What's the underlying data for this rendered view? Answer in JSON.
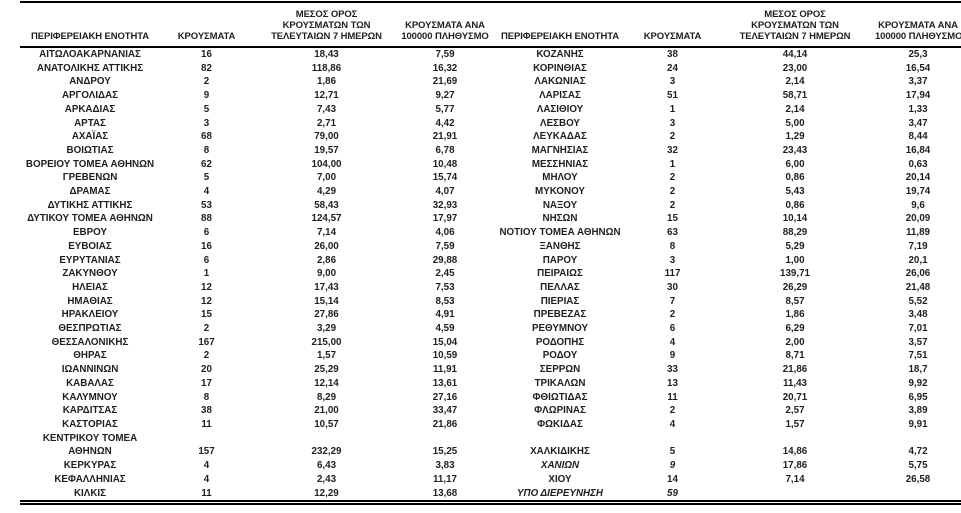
{
  "colors": {
    "text": "#1f1f1f",
    "rule": "#000000",
    "background": "#ffffff"
  },
  "table": {
    "column_headers": {
      "region": "ΠΕΡΙΦΕΡΕΙΑΚΗ ΕΝΟΤΗΤΑ",
      "cases": "ΚΡΟΥΣΜΑΤΑ",
      "avg7": "ΜΕΣΟΣ ΟΡΟΣ\nΚΡΟΥΣΜΑΤΩΝ ΤΩΝ\nΤΕΛΕΥΤΑΙΩΝ 7 ΗΜΕΡΩΝ",
      "per100k": "ΚΡΟΥΣΜΑΤΑ ΑΝΑ\n100000 ΠΛΗΘΥΣΜΟ"
    },
    "rows": [
      {
        "left": {
          "region": "ΑΙΤΩΛΟΑΚΑΡΝΑΝΙΑΣ",
          "cases": "16",
          "avg7": "18,43",
          "per100k": "7,59"
        },
        "right": {
          "region": "ΚΟΖΑΝΗΣ",
          "cases": "38",
          "avg7": "44,14",
          "per100k": "25,3"
        }
      },
      {
        "left": {
          "region": "ΑΝΑΤΟΛΙΚΗΣ ΑΤΤΙΚΗΣ",
          "cases": "82",
          "avg7": "118,86",
          "per100k": "16,32"
        },
        "right": {
          "region": "ΚΟΡΙΝΘΙΑΣ",
          "cases": "24",
          "avg7": "23,00",
          "per100k": "16,54"
        }
      },
      {
        "left": {
          "region": "ΑΝΔΡΟΥ",
          "cases": "2",
          "avg7": "1,86",
          "per100k": "21,69"
        },
        "right": {
          "region": "ΛΑΚΩΝΙΑΣ",
          "cases": "3",
          "avg7": "2,14",
          "per100k": "3,37"
        }
      },
      {
        "left": {
          "region": "ΑΡΓΟΛΙΔΑΣ",
          "cases": "9",
          "avg7": "12,71",
          "per100k": "9,27"
        },
        "right": {
          "region": "ΛΑΡΙΣΑΣ",
          "cases": "51",
          "avg7": "58,71",
          "per100k": "17,94"
        }
      },
      {
        "left": {
          "region": "ΑΡΚΑΔΙΑΣ",
          "cases": "5",
          "avg7": "7,43",
          "per100k": "5,77"
        },
        "right": {
          "region": "ΛΑΣΙΘΙΟΥ",
          "cases": "1",
          "avg7": "2,14",
          "per100k": "1,33"
        }
      },
      {
        "left": {
          "region": "ΑΡΤΑΣ",
          "cases": "3",
          "avg7": "2,71",
          "per100k": "4,42"
        },
        "right": {
          "region": "ΛΕΣΒΟΥ",
          "cases": "3",
          "avg7": "5,00",
          "per100k": "3,47"
        }
      },
      {
        "left": {
          "region": "ΑΧΑΪΑΣ",
          "cases": "68",
          "avg7": "79,00",
          "per100k": "21,91"
        },
        "right": {
          "region": "ΛΕΥΚΑΔΑΣ",
          "cases": "2",
          "avg7": "1,29",
          "per100k": "8,44"
        }
      },
      {
        "left": {
          "region": "ΒΟΙΩΤΙΑΣ",
          "cases": "8",
          "avg7": "19,57",
          "per100k": "6,78"
        },
        "right": {
          "region": "ΜΑΓΝΗΣΙΑΣ",
          "cases": "32",
          "avg7": "23,43",
          "per100k": "16,84"
        }
      },
      {
        "left": {
          "region": "ΒΟΡΕΙΟΥ ΤΟΜΕΑ ΑΘΗΝΩΝ",
          "cases": "62",
          "avg7": "104,00",
          "per100k": "10,48"
        },
        "right": {
          "region": "ΜΕΣΣΗΝΙΑΣ",
          "cases": "1",
          "avg7": "6,00",
          "per100k": "0,63"
        }
      },
      {
        "left": {
          "region": "ΓΡΕΒΕΝΩΝ",
          "cases": "5",
          "avg7": "7,00",
          "per100k": "15,74"
        },
        "right": {
          "region": "ΜΗΛΟΥ",
          "cases": "2",
          "avg7": "0,86",
          "per100k": "20,14"
        }
      },
      {
        "left": {
          "region": "ΔΡΑΜΑΣ",
          "cases": "4",
          "avg7": "4,29",
          "per100k": "4,07"
        },
        "right": {
          "region": "ΜΥΚΟΝΟΥ",
          "cases": "2",
          "avg7": "5,43",
          "per100k": "19,74"
        }
      },
      {
        "left": {
          "region": "ΔΥΤΙΚΗΣ ΑΤΤΙΚΗΣ",
          "cases": "53",
          "avg7": "58,43",
          "per100k": "32,93"
        },
        "right": {
          "region": "ΝΑΞΟΥ",
          "cases": "2",
          "avg7": "0,86",
          "per100k": "9,6"
        }
      },
      {
        "left": {
          "region": "ΔΥΤΙΚΟΥ ΤΟΜΕΑ ΑΘΗΝΩΝ",
          "cases": "88",
          "avg7": "124,57",
          "per100k": "17,97"
        },
        "right": {
          "region": "ΝΗΣΩΝ",
          "cases": "15",
          "avg7": "10,14",
          "per100k": "20,09"
        }
      },
      {
        "left": {
          "region": "ΕΒΡΟΥ",
          "cases": "6",
          "avg7": "7,14",
          "per100k": "4,06"
        },
        "right": {
          "region": "ΝΟΤΙΟΥ ΤΟΜΕΑ ΑΘΗΝΩΝ",
          "cases": "63",
          "avg7": "88,29",
          "per100k": "11,89"
        }
      },
      {
        "left": {
          "region": "ΕΥΒΟΙΑΣ",
          "cases": "16",
          "avg7": "26,00",
          "per100k": "7,59"
        },
        "right": {
          "region": "ΞΑΝΘΗΣ",
          "cases": "8",
          "avg7": "5,29",
          "per100k": "7,19"
        }
      },
      {
        "left": {
          "region": "ΕΥΡΥΤΑΝΙΑΣ",
          "cases": "6",
          "avg7": "2,86",
          "per100k": "29,88"
        },
        "right": {
          "region": "ΠΑΡΟΥ",
          "cases": "3",
          "avg7": "1,00",
          "per100k": "20,1"
        }
      },
      {
        "left": {
          "region": "ΖΑΚΥΝΘΟΥ",
          "cases": "1",
          "avg7": "9,00",
          "per100k": "2,45"
        },
        "right": {
          "region": "ΠΕΙΡΑΙΩΣ",
          "cases": "117",
          "avg7": "139,71",
          "per100k": "26,06"
        }
      },
      {
        "left": {
          "region": "ΗΛΕΙΑΣ",
          "cases": "12",
          "avg7": "17,43",
          "per100k": "7,53"
        },
        "right": {
          "region": "ΠΕΛΛΑΣ",
          "cases": "30",
          "avg7": "26,29",
          "per100k": "21,48"
        }
      },
      {
        "left": {
          "region": "ΗΜΑΘΙΑΣ",
          "cases": "12",
          "avg7": "15,14",
          "per100k": "8,53"
        },
        "right": {
          "region": "ΠΙΕΡΙΑΣ",
          "cases": "7",
          "avg7": "8,57",
          "per100k": "5,52"
        }
      },
      {
        "left": {
          "region": "ΗΡΑΚΛΕΙΟΥ",
          "cases": "15",
          "avg7": "27,86",
          "per100k": "4,91"
        },
        "right": {
          "region": "ΠΡΕΒΕΖΑΣ",
          "cases": "2",
          "avg7": "1,86",
          "per100k": "3,48"
        }
      },
      {
        "left": {
          "region": "ΘΕΣΠΡΩΤΙΑΣ",
          "cases": "2",
          "avg7": "3,29",
          "per100k": "4,59"
        },
        "right": {
          "region": "ΡΕΘΥΜΝΟΥ",
          "cases": "6",
          "avg7": "6,29",
          "per100k": "7,01"
        }
      },
      {
        "left": {
          "region": "ΘΕΣΣΑΛΟΝΙΚΗΣ",
          "cases": "167",
          "avg7": "215,00",
          "per100k": "15,04"
        },
        "right": {
          "region": "ΡΟΔΟΠΗΣ",
          "cases": "4",
          "avg7": "2,00",
          "per100k": "3,57"
        }
      },
      {
        "left": {
          "region": "ΘΗΡΑΣ",
          "cases": "2",
          "avg7": "1,57",
          "per100k": "10,59"
        },
        "right": {
          "region": "ΡΟΔΟΥ",
          "cases": "9",
          "avg7": "8,71",
          "per100k": "7,51"
        }
      },
      {
        "left": {
          "region": "ΙΩΑΝΝΙΝΩΝ",
          "cases": "20",
          "avg7": "25,29",
          "per100k": "11,91"
        },
        "right": {
          "region": "ΣΕΡΡΩΝ",
          "cases": "33",
          "avg7": "21,86",
          "per100k": "18,7"
        }
      },
      {
        "left": {
          "region": "ΚΑΒΑΛΑΣ",
          "cases": "17",
          "avg7": "12,14",
          "per100k": "13,61"
        },
        "right": {
          "region": "ΤΡΙΚΑΛΩΝ",
          "cases": "13",
          "avg7": "11,43",
          "per100k": "9,92"
        }
      },
      {
        "left": {
          "region": "ΚΑΛΥΜΝΟΥ",
          "cases": "8",
          "avg7": "8,29",
          "per100k": "27,16"
        },
        "right": {
          "region": "ΦΘΙΩΤΙΔΑΣ",
          "cases": "11",
          "avg7": "20,71",
          "per100k": "6,95"
        }
      },
      {
        "left": {
          "region": "ΚΑΡΔΙΤΣΑΣ",
          "cases": "38",
          "avg7": "21,00",
          "per100k": "33,47"
        },
        "right": {
          "region": "ΦΛΩΡΙΝΑΣ",
          "cases": "2",
          "avg7": "2,57",
          "per100k": "3,89"
        }
      },
      {
        "left": {
          "region": "ΚΑΣΤΟΡΙΑΣ",
          "cases": "11",
          "avg7": "10,57",
          "per100k": "21,86"
        },
        "right": {
          "region": "ΦΩΚΙΔΑΣ",
          "cases": "4",
          "avg7": "1,57",
          "per100k": "9,91"
        }
      },
      {
        "left": {
          "region": "ΚΕΝΤΡΙΚΟΥ ΤΟΜΕΑ",
          "cases": "",
          "avg7": "",
          "per100k": ""
        },
        "right": {
          "region": "",
          "cases": "",
          "avg7": "",
          "per100k": ""
        }
      },
      {
        "left": {
          "region": "ΑΘΗΝΩΝ",
          "cases": "157",
          "avg7": "232,29",
          "per100k": "15,25"
        },
        "right": {
          "region": "ΧΑΛΚΙΔΙΚΗΣ",
          "cases": "5",
          "avg7": "14,86",
          "per100k": "4,72"
        }
      },
      {
        "left": {
          "region": "ΚΕΡΚΥΡΑΣ",
          "cases": "4",
          "avg7": "6,43",
          "per100k": "3,83"
        },
        "right": {
          "region": "ΧΑΝΙΩΝ",
          "cases": "9",
          "avg7": "17,86",
          "per100k": "5,75",
          "italic": [
            "region",
            "cases"
          ]
        }
      },
      {
        "left": {
          "region": "ΚΕΦΑΛΛΗΝΙΑΣ",
          "cases": "4",
          "avg7": "2,43",
          "per100k": "11,17"
        },
        "right": {
          "region": "ΧΙΟΥ",
          "cases": "14",
          "avg7": "7,14",
          "per100k": "26,58"
        }
      },
      {
        "left": {
          "region": "ΚΙΛΚΙΣ",
          "cases": "11",
          "avg7": "12,29",
          "per100k": "13,68"
        },
        "right": {
          "region": "ΥΠΟ ΔΙΕΡΕΥΝΗΣΗ",
          "cases": "59",
          "avg7": "",
          "per100k": "",
          "italic": [
            "region",
            "cases"
          ]
        }
      }
    ]
  }
}
